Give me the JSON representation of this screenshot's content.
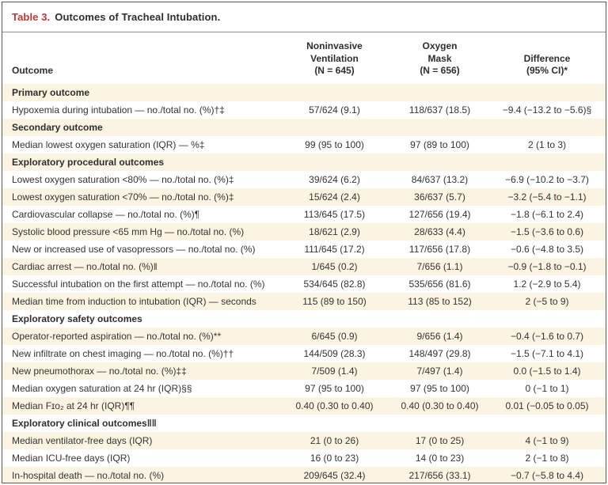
{
  "title": {
    "prefix": "Table 3.",
    "text": "Outcomes of Tracheal Intubation."
  },
  "colors": {
    "accent_red": "#b23c35",
    "text": "#2e2e2e",
    "stripe_cream": "#fcf4e2",
    "outer_border": "#585858",
    "bottom_rule": "#3a3a3a"
  },
  "table": {
    "columns": [
      {
        "key": "outcome",
        "label": "Outcome"
      },
      {
        "key": "niv",
        "label": "Noninvasive\nVentilation\n(N = 645)"
      },
      {
        "key": "mask",
        "label": "Oxygen\nMask\n(N = 656)"
      },
      {
        "key": "diff",
        "label": "Difference\n(95% CI)*"
      }
    ],
    "rows": [
      {
        "type": "section",
        "outcome": "Primary outcome",
        "niv": "",
        "mask": "",
        "diff": ""
      },
      {
        "type": "data",
        "outcome": "Hypoxemia during intubation — no./total no. (%)†‡",
        "niv": "57/624 (9.1)",
        "mask": "118/637 (18.5)",
        "diff": "−9.4 (−13.2 to −5.6)§"
      },
      {
        "type": "section",
        "outcome": "Secondary outcome",
        "niv": "",
        "mask": "",
        "diff": ""
      },
      {
        "type": "data",
        "outcome": "Median lowest oxygen saturation (IQR) — %‡",
        "niv": "99 (95 to 100)",
        "mask": "97 (89 to 100)",
        "diff": "2 (1 to 3)"
      },
      {
        "type": "section",
        "outcome": "Exploratory procedural outcomes",
        "niv": "",
        "mask": "",
        "diff": ""
      },
      {
        "type": "data",
        "outcome": "Lowest oxygen saturation <80% — no./total no. (%)‡",
        "niv": "39/624 (6.2)",
        "mask": "84/637 (13.2)",
        "diff": "−6.9 (−10.2 to −3.7)"
      },
      {
        "type": "data",
        "outcome": "Lowest oxygen saturation <70% — no./total no. (%)‡",
        "niv": "15/624 (2.4)",
        "mask": "36/637 (5.7)",
        "diff": "−3.2 (−5.4 to −1.1)"
      },
      {
        "type": "data",
        "outcome": "Cardiovascular collapse — no./total no. (%)¶",
        "niv": "113/645 (17.5)",
        "mask": "127/656 (19.4)",
        "diff": "−1.8 (−6.1 to 2.4)"
      },
      {
        "type": "data",
        "outcome": "Systolic blood pressure <65 mm Hg — no./total no. (%)",
        "niv": "18/621 (2.9)",
        "mask": "28/633 (4.4)",
        "diff": "−1.5 (−3.6 to 0.6)"
      },
      {
        "type": "data",
        "outcome": "New or increased use of vasopressors — no./total no. (%)",
        "niv": "111/645 (17.2)",
        "mask": "117/656 (17.8)",
        "diff": "−0.6 (−4.8 to 3.5)"
      },
      {
        "type": "data",
        "outcome": "Cardiac arrest — no./total no. (%)‖",
        "niv": "1/645 (0.2)",
        "mask": "7/656 (1.1)",
        "diff": "−0.9 (−1.8 to −0.1)"
      },
      {
        "type": "data",
        "outcome": "Successful intubation on the first attempt — no./total no. (%)",
        "niv": "534/645 (82.8)",
        "mask": "535/656 (81.6)",
        "diff": "1.2 (−2.9 to 5.4)"
      },
      {
        "type": "data",
        "outcome": "Median time from induction to intubation (IQR) — seconds",
        "niv": "115 (89 to 150)",
        "mask": "113 (85 to 152)",
        "diff": "2 (−5 to 9)"
      },
      {
        "type": "section",
        "outcome": "Exploratory safety outcomes",
        "niv": "",
        "mask": "",
        "diff": ""
      },
      {
        "type": "data",
        "outcome": "Operator-reported aspiration — no./total no. (%)**",
        "niv": "6/645 (0.9)",
        "mask": "9/656 (1.4)",
        "diff": "−0.4 (−1.6 to 0.7)"
      },
      {
        "type": "data",
        "outcome": "New infiltrate on chest imaging — no./total no. (%)††",
        "niv": "144/509 (28.3)",
        "mask": "148/497 (29.8)",
        "diff": "−1.5 (−7.1 to 4.1)"
      },
      {
        "type": "data",
        "outcome": "New pneumothorax — no./total no. (%)‡‡",
        "niv": "7/509 (1.4)",
        "mask": "7/497 (1.4)",
        "diff": "0.0 (−1.5 to 1.4)"
      },
      {
        "type": "data",
        "outcome": "Median oxygen saturation at 24 hr (IQR)§§",
        "niv": "97 (95 to 100)",
        "mask": "97 (95 to 100)",
        "diff": "0 (−1 to 1)"
      },
      {
        "type": "data",
        "outcome": "Median Fɪᴏ₂ at 24 hr (IQR)¶¶",
        "niv": "0.40 (0.30 to 0.40)",
        "mask": "0.40 (0.30 to 0.40)",
        "diff": "0.01 (−0.05 to 0.05)"
      },
      {
        "type": "section",
        "outcome": "Exploratory clinical outcomes‖‖",
        "niv": "",
        "mask": "",
        "diff": ""
      },
      {
        "type": "data",
        "outcome": "Median ventilator-free days (IQR)",
        "niv": "21 (0 to 26)",
        "mask": "17 (0 to 25)",
        "diff": "4 (−1 to 9)"
      },
      {
        "type": "data",
        "outcome": "Median ICU-free days (IQR)",
        "niv": "16 (0 to 23)",
        "mask": "14 (0 to 23)",
        "diff": "2 (−1 to 8)"
      },
      {
        "type": "data",
        "outcome": "In-hospital death — no./total no. (%)",
        "niv": "209/645 (32.4)",
        "mask": "217/656 (33.1)",
        "diff": "−0.7 (−5.8 to 4.4)"
      }
    ]
  },
  "chart_data": {
    "type": "table",
    "title": "Table 3. Outcomes of Tracheal Intubation.",
    "columns": [
      "Outcome",
      "Noninvasive Ventilation (N = 645)",
      "Oxygen Mask (N = 656)",
      "Difference (95% CI)*"
    ],
    "sections": [
      {
        "name": "Primary outcome",
        "rows": [
          [
            "Hypoxemia during intubation — no./total no. (%)†‡",
            "57/624 (9.1)",
            "118/637 (18.5)",
            "−9.4 (−13.2 to −5.6)§"
          ]
        ]
      },
      {
        "name": "Secondary outcome",
        "rows": [
          [
            "Median lowest oxygen saturation (IQR) — %‡",
            "99 (95 to 100)",
            "97 (89 to 100)",
            "2 (1 to 3)"
          ]
        ]
      },
      {
        "name": "Exploratory procedural outcomes",
        "rows": [
          [
            "Lowest oxygen saturation <80% — no./total no. (%)‡",
            "39/624 (6.2)",
            "84/637 (13.2)",
            "−6.9 (−10.2 to −3.7)"
          ],
          [
            "Lowest oxygen saturation <70% — no./total no. (%)‡",
            "15/624 (2.4)",
            "36/637 (5.7)",
            "−3.2 (−5.4 to −1.1)"
          ],
          [
            "Cardiovascular collapse — no./total no. (%)¶",
            "113/645 (17.5)",
            "127/656 (19.4)",
            "−1.8 (−6.1 to 2.4)"
          ],
          [
            "Systolic blood pressure <65 mm Hg — no./total no. (%)",
            "18/621 (2.9)",
            "28/633 (4.4)",
            "−1.5 (−3.6 to 0.6)"
          ],
          [
            "New or increased use of vasopressors — no./total no. (%)",
            "111/645 (17.2)",
            "117/656 (17.8)",
            "−0.6 (−4.8 to 3.5)"
          ],
          [
            "Cardiac arrest — no./total no. (%)‖",
            "1/645 (0.2)",
            "7/656 (1.1)",
            "−0.9 (−1.8 to −0.1)"
          ],
          [
            "Successful intubation on the first attempt — no./total no. (%)",
            "534/645 (82.8)",
            "535/656 (81.6)",
            "1.2 (−2.9 to 5.4)"
          ],
          [
            "Median time from induction to intubation (IQR) — seconds",
            "115 (89 to 150)",
            "113 (85 to 152)",
            "2 (−5 to 9)"
          ]
        ]
      },
      {
        "name": "Exploratory safety outcomes",
        "rows": [
          [
            "Operator-reported aspiration — no./total no. (%)**",
            "6/645 (0.9)",
            "9/656 (1.4)",
            "−0.4 (−1.6 to 0.7)"
          ],
          [
            "New infiltrate on chest imaging — no./total no. (%)††",
            "144/509 (28.3)",
            "148/497 (29.8)",
            "−1.5 (−7.1 to 4.1)"
          ],
          [
            "New pneumothorax — no./total no. (%)‡‡",
            "7/509 (1.4)",
            "7/497 (1.4)",
            "0.0 (−1.5 to 1.4)"
          ],
          [
            "Median oxygen saturation at 24 hr (IQR)§§",
            "97 (95 to 100)",
            "97 (95 to 100)",
            "0 (−1 to 1)"
          ],
          [
            "Median Fɪᴏ₂ at 24 hr (IQR)¶¶",
            "0.40 (0.30 to 0.40)",
            "0.40 (0.30 to 0.40)",
            "0.01 (−0.05 to 0.05)"
          ]
        ]
      },
      {
        "name": "Exploratory clinical outcomes‖‖",
        "rows": [
          [
            "Median ventilator-free days (IQR)",
            "21 (0 to 26)",
            "17 (0 to 25)",
            "4 (−1 to 9)"
          ],
          [
            "Median ICU-free days (IQR)",
            "16 (0 to 23)",
            "14 (0 to 23)",
            "2 (−1 to 8)"
          ],
          [
            "In-hospital death — no./total no. (%)",
            "209/645 (32.4)",
            "217/656 (33.1)",
            "−0.7 (−5.8 to 4.4)"
          ]
        ]
      }
    ]
  }
}
